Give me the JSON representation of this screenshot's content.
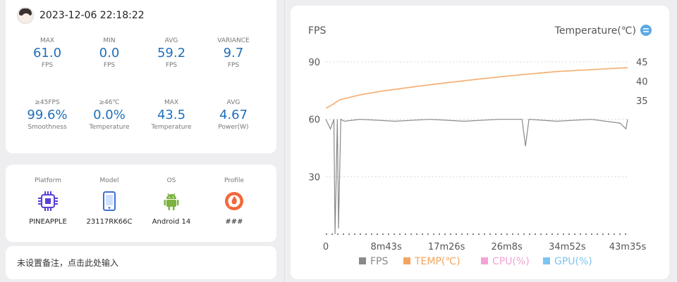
{
  "stats_card": {
    "timestamp": "2023-12-06 22:18:22",
    "stats": [
      {
        "label": "MAX",
        "value": "61.0",
        "unit": "FPS"
      },
      {
        "label": "MIN",
        "value": "0.0",
        "unit": "FPS"
      },
      {
        "label": "AVG",
        "value": "59.2",
        "unit": "FPS"
      },
      {
        "label": "VARIANCE",
        "value": "9.7",
        "unit": "FPS"
      },
      {
        "label": "≥45FPS",
        "value": "99.6%",
        "unit": "Smoothness"
      },
      {
        "label": "≥46℃",
        "value": "0.0%",
        "unit": "Temperature"
      },
      {
        "label": "MAX",
        "value": "43.5",
        "unit": "Temperature"
      },
      {
        "label": "AVG",
        "value": "4.67",
        "unit": "Power(W)"
      }
    ]
  },
  "device_card": {
    "items": [
      {
        "label": "Platform",
        "value": "PINEAPPLE",
        "icon": "chip-icon"
      },
      {
        "label": "Model",
        "value": "23117RK66C",
        "icon": "phone-icon"
      },
      {
        "label": "OS",
        "value": "Android 14",
        "icon": "android-icon"
      },
      {
        "label": "Profile",
        "value": "###",
        "icon": "profile-icon"
      }
    ]
  },
  "note": {
    "text": "未设置备注，点击此处输入"
  },
  "chart": {
    "left_title": "FPS",
    "right_title": "Temperature(℃)",
    "right_title_icon": "swap-icon",
    "colors": {
      "fps": "#8a8a8a",
      "temp": "#f5b27a",
      "cpu": "#f3a3d8",
      "gpu": "#7cc4ee",
      "accent": "#5aa9e6"
    },
    "legend": [
      {
        "label": "FPS",
        "color": "#8a8a8a"
      },
      {
        "label": "TEMP(℃)",
        "color": "#f5a45f"
      },
      {
        "label": "CPU(%)",
        "color": "#f3a3d8"
      },
      {
        "label": "GPU(%)",
        "color": "#7cc4ee"
      }
    ]
  },
  "chart_data": {
    "type": "line",
    "x_ticks": [
      "0",
      "8m43s",
      "17m26s",
      "26m8s",
      "34m52s",
      "43m35s"
    ],
    "x_range_seconds": [
      0,
      2615
    ],
    "y_left_ticks": [
      "30",
      "60",
      "90"
    ],
    "y_left_range": [
      0,
      90
    ],
    "y_right_ticks": [
      "35",
      "40",
      "45"
    ],
    "y_right_range": [
      35,
      45
    ],
    "series": [
      {
        "name": "FPS",
        "x": [
          0,
          40,
          70,
          80,
          100,
          110,
          130,
          160,
          300,
          600,
          900,
          1200,
          1500,
          1700,
          1730,
          1760,
          2000,
          2300,
          2550,
          2600,
          2615
        ],
        "y": [
          60,
          55,
          60,
          0,
          60,
          3,
          60,
          59,
          60,
          59,
          60,
          59,
          60,
          60,
          46,
          60,
          59,
          60,
          58,
          55,
          60
        ]
      },
      {
        "name": "TEMP(℃)",
        "x": [
          0,
          60,
          120,
          300,
          500,
          800,
          1100,
          1400,
          1700,
          2000,
          2300,
          2615
        ],
        "y": [
          33.0,
          34.0,
          35.2,
          36.5,
          37.5,
          38.7,
          39.8,
          40.8,
          41.7,
          42.5,
          43.0,
          43.5
        ]
      }
    ]
  }
}
